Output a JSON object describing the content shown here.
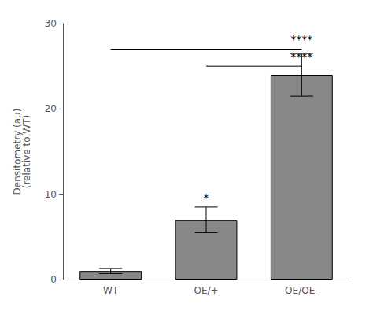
{
  "chart_data": {
    "type": "bar",
    "categories": [
      "WT",
      "OE/+",
      "OE/OE-"
    ],
    "values": [
      1.0,
      7.0,
      24.0
    ],
    "errors": [
      0.3,
      1.5,
      2.5
    ],
    "color": "#888888",
    "ylabel": "Densitometry (au)\n(relative to WT)",
    "ylim": [
      0,
      30
    ],
    "yticks": [
      0,
      10,
      20,
      30
    ],
    "grid": false,
    "brackets": [
      {
        "x": [
          0,
          2
        ],
        "y": 27
      },
      {
        "x": [
          1,
          2
        ],
        "y": 25
      }
    ],
    "annotations": [
      {
        "text": "****",
        "x": 2,
        "y": 27.5
      },
      {
        "text": "****",
        "x": 1.5,
        "y": 25.5
      },
      {
        "text": "*",
        "x": 1,
        "y": 9.0
      }
    ]
  }
}
